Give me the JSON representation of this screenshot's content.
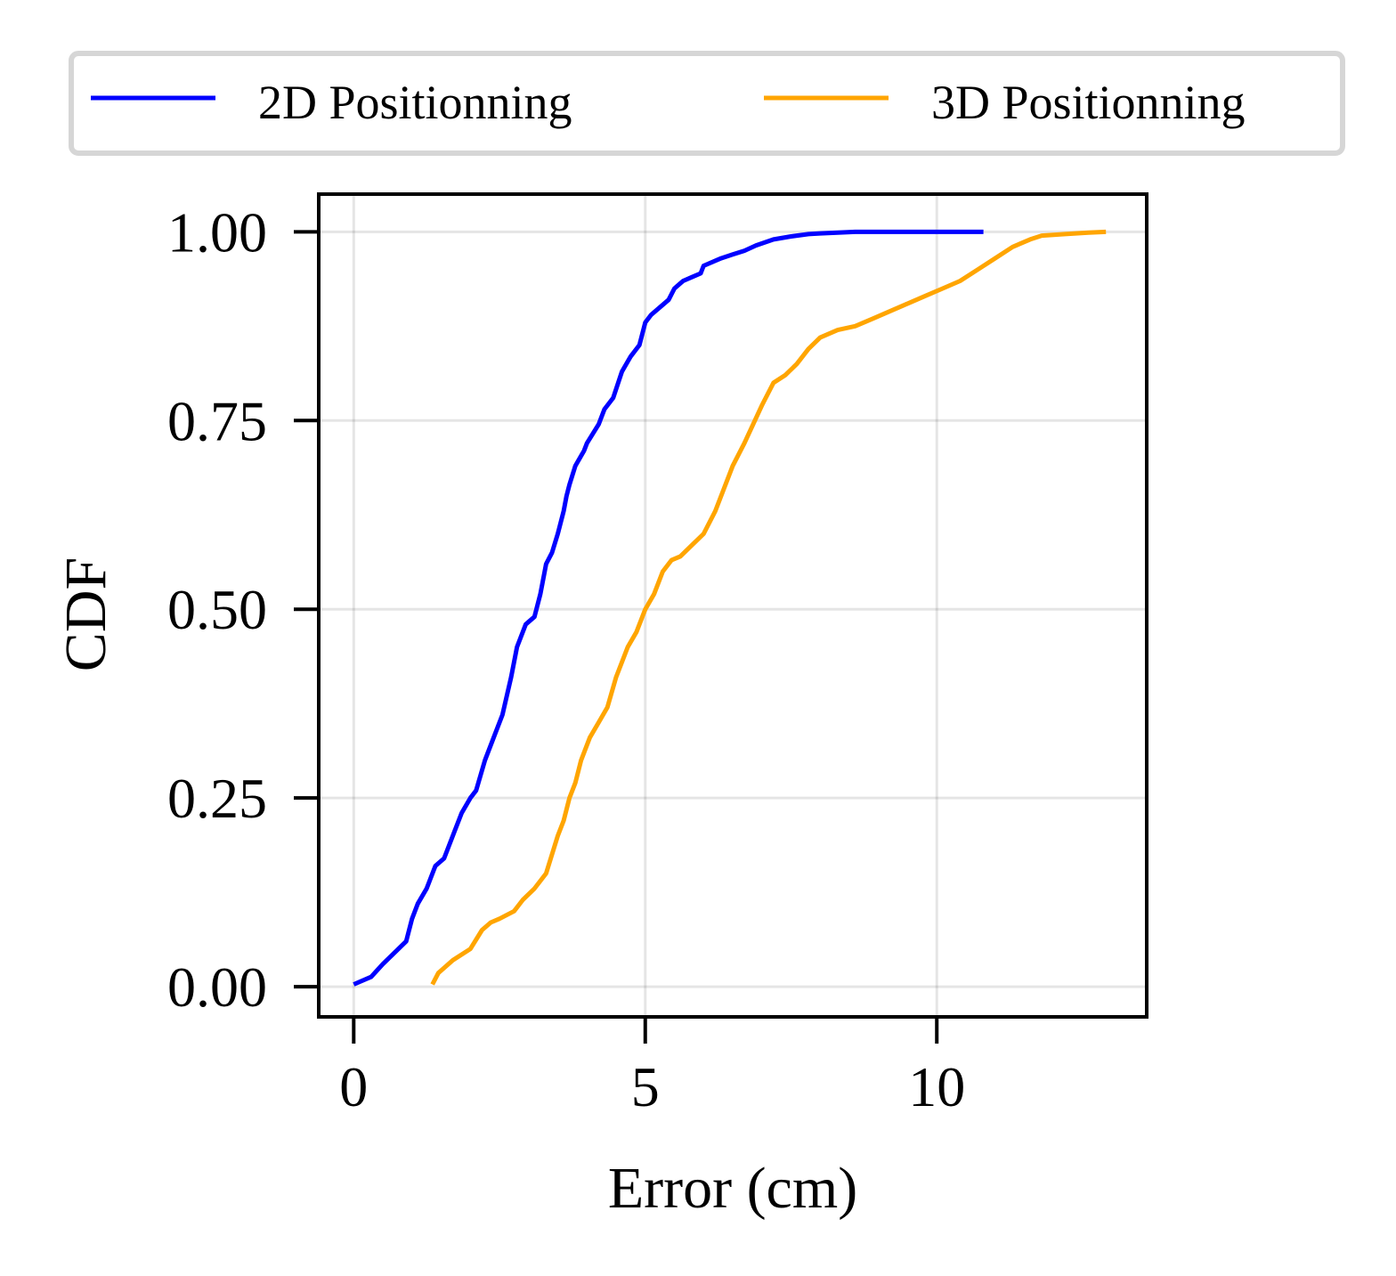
{
  "chart_data": {
    "type": "line",
    "title": "",
    "xlabel": "Error (cm)",
    "ylabel": "CDF",
    "xlim": [
      -0.6,
      13.6
    ],
    "ylim": [
      -0.04,
      1.05
    ],
    "xticks": [
      0,
      5,
      10
    ],
    "xtick_labels": [
      "0",
      "5",
      "10"
    ],
    "yticks": [
      0.0,
      0.25,
      0.5,
      0.75,
      1.0
    ],
    "ytick_labels": [
      "0.00",
      "0.25",
      "0.50",
      "0.75",
      "1.00"
    ],
    "grid": true,
    "legend_placement": "top-outside",
    "series": [
      {
        "name": "2D Positionning",
        "color": "#0000ff",
        "x": [
          0.0,
          0.3,
          0.5,
          0.7,
          0.9,
          1.0,
          1.1,
          1.25,
          1.4,
          1.55,
          1.7,
          1.85,
          2.0,
          2.1,
          2.25,
          2.4,
          2.55,
          2.7,
          2.8,
          2.95,
          3.1,
          3.2,
          3.3,
          3.4,
          3.5,
          3.6,
          3.65,
          3.7,
          3.8,
          3.95,
          4.0,
          4.2,
          4.3,
          4.45,
          4.6,
          4.75,
          4.9,
          5.0,
          5.1,
          5.25,
          5.4,
          5.5,
          5.65,
          5.8,
          5.95,
          6.0,
          6.3,
          6.5,
          6.7,
          6.9,
          7.2,
          7.5,
          7.8,
          8.0,
          8.3,
          8.6,
          8.9,
          9.3,
          9.7,
          10.2,
          10.8
        ],
        "values": [
          0.003,
          0.013,
          0.03,
          0.045,
          0.06,
          0.09,
          0.11,
          0.13,
          0.16,
          0.17,
          0.2,
          0.23,
          0.25,
          0.26,
          0.3,
          0.33,
          0.36,
          0.41,
          0.45,
          0.48,
          0.49,
          0.52,
          0.56,
          0.575,
          0.6,
          0.63,
          0.65,
          0.665,
          0.69,
          0.71,
          0.72,
          0.745,
          0.765,
          0.78,
          0.815,
          0.835,
          0.85,
          0.88,
          0.89,
          0.9,
          0.91,
          0.925,
          0.935,
          0.94,
          0.945,
          0.955,
          0.965,
          0.97,
          0.975,
          0.982,
          0.99,
          0.994,
          0.997,
          0.998,
          0.999,
          1.0,
          1.0,
          1.0,
          1.0,
          1.0,
          1.0
        ]
      },
      {
        "name": "3D Positionning",
        "color": "#ffa500",
        "x": [
          1.35,
          1.45,
          1.7,
          2.0,
          2.2,
          2.35,
          2.5,
          2.75,
          2.9,
          3.1,
          3.3,
          3.5,
          3.6,
          3.7,
          3.8,
          3.9,
          4.05,
          4.2,
          4.35,
          4.5,
          4.7,
          4.85,
          5.0,
          5.15,
          5.3,
          5.45,
          5.6,
          5.8,
          6.0,
          6.2,
          6.35,
          6.5,
          6.7,
          6.85,
          7.0,
          7.2,
          7.4,
          7.6,
          7.8,
          8.0,
          8.3,
          8.6,
          8.9,
          9.2,
          9.5,
          9.8,
          10.1,
          10.4,
          10.7,
          11.0,
          11.3,
          11.6,
          11.8,
          12.2,
          12.6,
          12.9
        ],
        "values": [
          0.003,
          0.018,
          0.035,
          0.05,
          0.075,
          0.085,
          0.09,
          0.1,
          0.115,
          0.13,
          0.15,
          0.2,
          0.22,
          0.25,
          0.27,
          0.3,
          0.33,
          0.35,
          0.37,
          0.41,
          0.45,
          0.47,
          0.5,
          0.52,
          0.55,
          0.565,
          0.57,
          0.585,
          0.6,
          0.63,
          0.66,
          0.69,
          0.72,
          0.745,
          0.77,
          0.8,
          0.81,
          0.825,
          0.845,
          0.86,
          0.87,
          0.875,
          0.885,
          0.895,
          0.905,
          0.915,
          0.925,
          0.935,
          0.95,
          0.965,
          0.98,
          0.99,
          0.995,
          0.997,
          0.999,
          1.0
        ]
      }
    ]
  }
}
